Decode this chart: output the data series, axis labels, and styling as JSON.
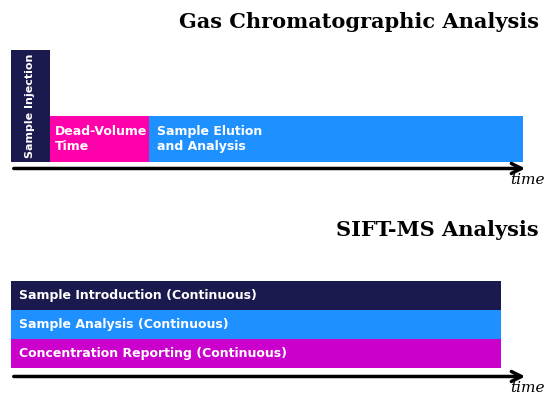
{
  "top_bg": "#d0d0d0",
  "bottom_bg": "#aaddee",
  "top_title": "Gas Chromatographic Analysis",
  "bottom_title": "SIFT-MS Analysis",
  "gc_injection_color": "#1a1a4e",
  "gc_injection_label": "Sample Injection",
  "gc_dead_color": "#ff00aa",
  "gc_dead_label": "Dead-Volume\nTime",
  "gc_elution_color": "#1e90ff",
  "gc_elution_label": "Sample Elution\nand Analysis",
  "sift_bar1_color": "#1a1a4e",
  "sift_bar1_label": "Sample Introduction (Continuous)",
  "sift_bar2_color": "#1e90ff",
  "sift_bar2_label": "Sample Analysis (Continuous)",
  "sift_bar3_color": "#cc00cc",
  "sift_bar3_label": "Concentration Reporting (Continuous)",
  "time_label": "time",
  "arrow_color": "#000000",
  "title_fontsize": 15,
  "bar_label_fontsize": 9
}
